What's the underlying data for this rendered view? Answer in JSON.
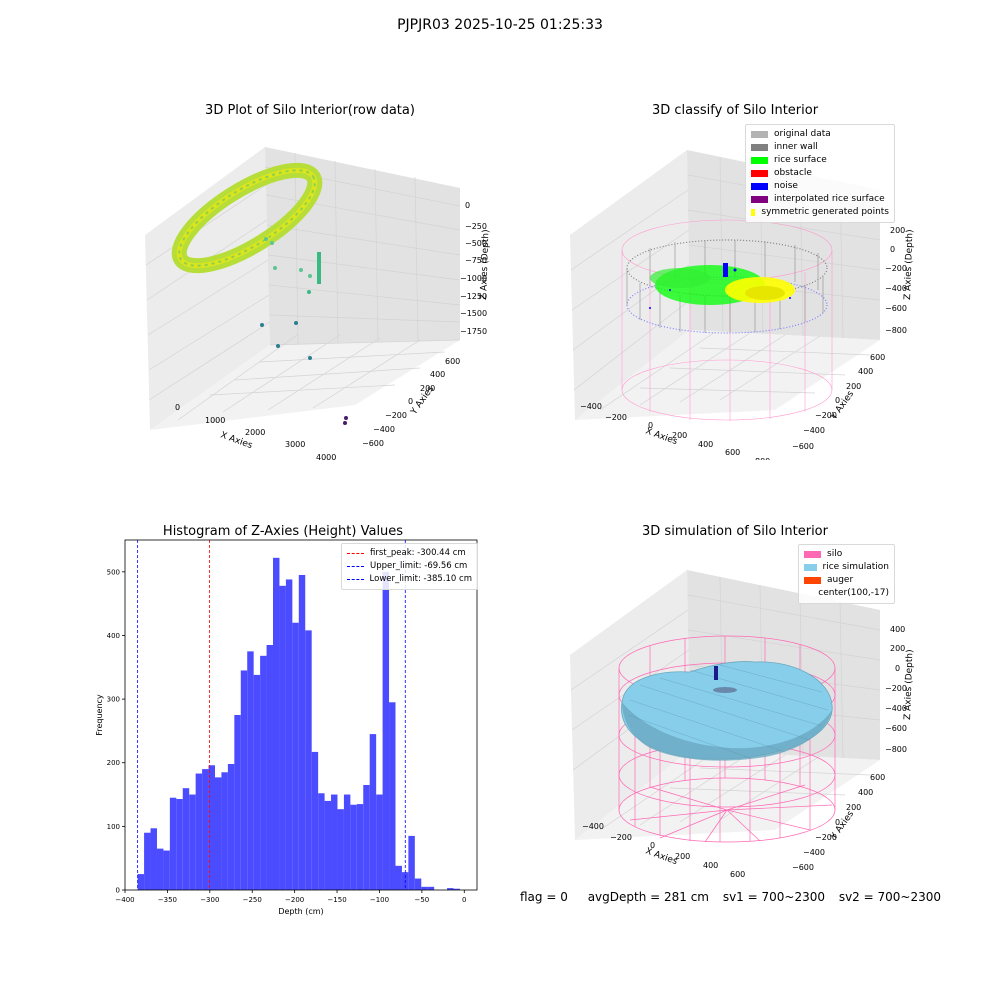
{
  "suptitle": "PJPJR03 2025-10-25 01:25:33",
  "panels": {
    "raw": {
      "title": "3D Plot of Silo Interior(row data)",
      "xlabel": "X Axies",
      "ylabel": "Y Axies",
      "zlabel": "Z Axies (Depth)",
      "xticks": [
        "0",
        "1000",
        "2000",
        "3000",
        "4000"
      ],
      "yticks": [
        "600",
        "400",
        "200",
        "0",
        "−200",
        "−400",
        "−600"
      ],
      "zticks": [
        "0",
        "−250",
        "−500",
        "−750",
        "−1000",
        "−1250",
        "−1500",
        "−1750"
      ]
    },
    "classify": {
      "title": "3D classify of Silo Interior",
      "xlabel": "X Axies",
      "ylabel": "Y Axies",
      "zlabel": "Z Axies (Depth)",
      "xticks": [
        "−400",
        "−200",
        "0",
        "200",
        "400",
        "600",
        "800"
      ],
      "yticks": [
        "600",
        "400",
        "200",
        "0",
        "−200",
        "−400",
        "−600"
      ],
      "zticks": [
        "200",
        "0",
        "−200",
        "−400",
        "−600",
        "−800"
      ],
      "legend": [
        {
          "label": "original data",
          "color": "#b3b3b3"
        },
        {
          "label": "inner wall",
          "color": "#808080"
        },
        {
          "label": "rice surface",
          "color": "#00ff00"
        },
        {
          "label": "obstacle",
          "color": "#ff0000"
        },
        {
          "label": "noise",
          "color": "#0000ff"
        },
        {
          "label": "interpolated rice surface",
          "color": "#800080"
        },
        {
          "label": "symmetric generated points",
          "color": "#ffff00"
        }
      ]
    },
    "simulation": {
      "title": "3D simulation of Silo Interior",
      "xlabel": "X Axies",
      "ylabel": "Y Axies",
      "zlabel": "Z Axies (Depth)",
      "xticks": [
        "−400",
        "−200",
        "0",
        "200",
        "400",
        "600"
      ],
      "yticks": [
        "600",
        "400",
        "200",
        "0",
        "−200",
        "−400",
        "−600"
      ],
      "zticks": [
        "400",
        "200",
        "0",
        "−200",
        "−400",
        "−600",
        "−800"
      ],
      "legend": [
        {
          "label": "silo",
          "color": "#ff69b4"
        },
        {
          "label": "rice simulation",
          "color": "#87ceeb"
        },
        {
          "label": "auger",
          "color": "#ff4500"
        },
        {
          "label": "center(100,-17)",
          "color": ""
        }
      ]
    }
  },
  "chart_data": {
    "type": "bar",
    "title": "Histogram of Z-Axies (Height) Values",
    "xlabel": "Depth (cm)",
    "ylabel": "Frequency",
    "xlim": [
      -400,
      15
    ],
    "ylim": [
      0,
      550
    ],
    "xticks": [
      -400,
      -350,
      -300,
      -250,
      -200,
      -150,
      -100,
      -50,
      0
    ],
    "yticks": [
      0,
      100,
      200,
      300,
      400,
      500
    ],
    "bar_color": "#4b4bff",
    "bins": {
      "start": -385.1,
      "width": 7.6,
      "counts": [
        25,
        90,
        97,
        65,
        62,
        145,
        143,
        160,
        150,
        183,
        190,
        196,
        177,
        185,
        198,
        275,
        345,
        375,
        338,
        368,
        385,
        522,
        478,
        488,
        420,
        495,
        408,
        217,
        152,
        140,
        150,
        127,
        150,
        134,
        135,
        165,
        245,
        150,
        500,
        295,
        38,
        28,
        85,
        18,
        5,
        5,
        0,
        0,
        3,
        2
      ]
    },
    "lines": [
      {
        "label": "first_peak: -300.44 cm",
        "x": -300.44,
        "color": "#ff0000"
      },
      {
        "label": "Upper_limit: -69.56 cm",
        "x": -69.56,
        "color": "#0000ff"
      },
      {
        "label": "Lower_limit: -385.10 cm",
        "x": -385.1,
        "color": "#0000ff"
      }
    ]
  },
  "status": {
    "flag": "flag = 0",
    "avg": "avgDepth = 281 cm",
    "sv1": "sv1 = 700~2300",
    "sv2": "sv2 = 700~2300"
  }
}
